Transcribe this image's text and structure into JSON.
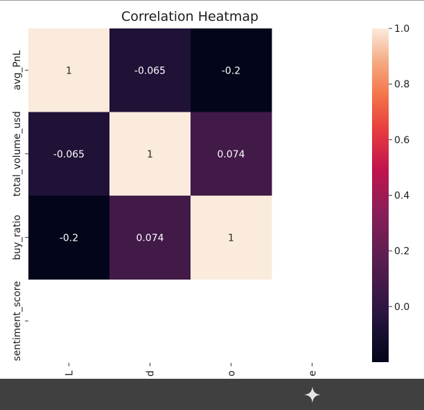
{
  "chart_data": {
    "type": "heatmap",
    "title": "Correlation Heatmap",
    "row_labels": [
      "avg_PnL",
      "total_volume_usd",
      "buy_ratio",
      "sentiment_score"
    ],
    "col_labels": [
      "L",
      "d",
      "o",
      "e"
    ],
    "values": [
      [
        1,
        -0.065,
        -0.2,
        null
      ],
      [
        -0.065,
        1,
        0.074,
        null
      ],
      [
        -0.2,
        0.074,
        1,
        null
      ],
      [
        null,
        null,
        null,
        null
      ]
    ],
    "annotations": [
      [
        "1",
        "-0.065",
        "-0.2",
        ""
      ],
      [
        "-0.065",
        "1",
        "0.074",
        ""
      ],
      [
        "-0.2",
        "0.074",
        "1",
        ""
      ],
      [
        "",
        "",
        "",
        ""
      ]
    ],
    "colorbar": {
      "colormap": "rocket",
      "range": [
        -0.2,
        1.0
      ],
      "ticks": [
        1.0,
        0.8,
        0.6,
        0.4,
        0.2,
        0.0
      ],
      "tick_labels": [
        "1.0",
        "0.8",
        "0.6",
        "0.4",
        "0.2",
        "0.0"
      ]
    }
  },
  "toolbar": {
    "icon": "sparkle-icon"
  }
}
